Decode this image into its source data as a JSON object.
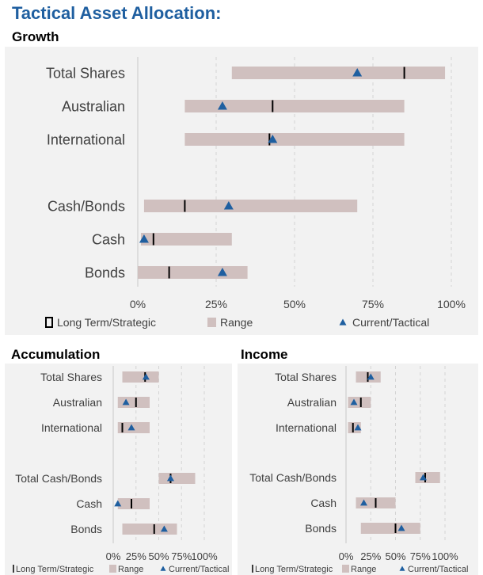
{
  "title": "Tactical Asset Allocation:",
  "colors": {
    "range": "#d0c0bf",
    "strategic": "#000000",
    "tactical": "#1f5fa0",
    "title": "#1f5fa0",
    "panel": "#f2f2f2",
    "grid": "#d4d4d4"
  },
  "chart_data": [
    {
      "type": "range_bar",
      "title": "Growth",
      "xlim": [
        0,
        100
      ],
      "ticks": [
        0,
        25,
        50,
        75,
        100
      ],
      "tick_labels": [
        "0%",
        "25%",
        "50%",
        "75%",
        "100%"
      ],
      "legend": [
        "Long Term/Strategic",
        "Range",
        "Current/Tactical"
      ],
      "categories": [
        "Total Shares",
        "Australian",
        "International",
        "",
        "Cash/Bonds",
        "Cash",
        "Bonds"
      ],
      "range_low": [
        30,
        15,
        15,
        null,
        2,
        1,
        0
      ],
      "range_high": [
        98,
        85,
        85,
        null,
        70,
        30,
        35
      ],
      "strategic": [
        85,
        43,
        42,
        null,
        15,
        5,
        10
      ],
      "tactical": [
        70,
        27,
        43,
        null,
        29,
        2,
        27
      ]
    },
    {
      "type": "range_bar",
      "title": "Accumulation",
      "xlim": [
        0,
        100
      ],
      "ticks": [
        0,
        25,
        50,
        75,
        100
      ],
      "tick_labels": [
        "0%",
        "25%",
        "50%",
        "75%",
        "100%"
      ],
      "legend": [
        "Long Term/Strategic",
        "Range",
        "Current/Tactical"
      ],
      "categories": [
        "Total Shares",
        "Australian",
        "International",
        "",
        "Total Cash/Bonds",
        "Cash",
        "Bonds"
      ],
      "range_low": [
        10,
        5,
        5,
        null,
        50,
        5,
        10
      ],
      "range_high": [
        50,
        40,
        40,
        null,
        90,
        40,
        70
      ],
      "strategic": [
        35,
        25,
        10,
        null,
        63,
        20,
        45
      ],
      "tactical": [
        36,
        14,
        20,
        null,
        63,
        5,
        56
      ]
    },
    {
      "type": "range_bar",
      "title": "Income",
      "xlim": [
        0,
        100
      ],
      "ticks": [
        0,
        25,
        50,
        75,
        100
      ],
      "tick_labels": [
        "0%",
        "25%",
        "50%",
        "75%",
        "100%"
      ],
      "legend": [
        "Long Term/Strategic",
        "Range",
        "Current/Tactical"
      ],
      "categories": [
        "Total Shares",
        "Australian",
        "International",
        "",
        "Total Cash/Bonds",
        "Cash",
        "Bonds"
      ],
      "range_low": [
        10,
        2,
        2,
        null,
        70,
        10,
        15
      ],
      "range_high": [
        35,
        25,
        15,
        null,
        95,
        50,
        75
      ],
      "strategic": [
        22,
        15,
        7,
        null,
        80,
        30,
        50
      ],
      "tactical": [
        25,
        8,
        12,
        null,
        78,
        18,
        56
      ]
    }
  ]
}
